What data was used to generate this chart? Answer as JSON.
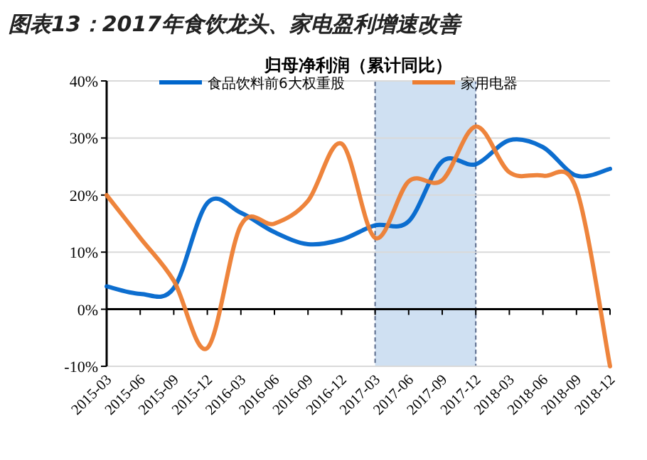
{
  "chart_data": {
    "type": "line",
    "title": "图表13：2017年食饮龙头、家电盈利增速改善",
    "subtitle": "归母净利润（累计同比）",
    "categories": [
      "2015-03",
      "2015-06",
      "2015-09",
      "2015-12",
      "2016-03",
      "2016-06",
      "2016-09",
      "2016-12",
      "2017-03",
      "2017-06",
      "2017-09",
      "2017-12",
      "2018-03",
      "2018-06",
      "2018-09",
      "2018-12"
    ],
    "series": [
      {
        "name": "食品饮料前6大权重股",
        "color": "#0066cc",
        "values": [
          4,
          2.7,
          3.7,
          18.6,
          16.9,
          13.5,
          11.4,
          12.2,
          14.7,
          15.4,
          25.9,
          25.4,
          29.6,
          28.4,
          23.4,
          24.6
        ]
      },
      {
        "name": "家用电器",
        "color": "#ed7d31",
        "values": [
          20,
          12.5,
          5,
          -6.8,
          14.7,
          15,
          19,
          29,
          12.5,
          22.4,
          22.6,
          32,
          24,
          23.4,
          21,
          -10
        ]
      }
    ],
    "ylim": [
      -10,
      40
    ],
    "yticks": [
      {
        "value": -10,
        "label": "-10%"
      },
      {
        "value": 0,
        "label": "0%"
      },
      {
        "value": 10,
        "label": "10%"
      },
      {
        "value": 20,
        "label": "20%"
      },
      {
        "value": 30,
        "label": "30%"
      },
      {
        "value": 40,
        "label": "40%"
      }
    ],
    "bands": [
      {
        "axis": "x",
        "from": "2017-03",
        "to": "2017-12",
        "color": "#cfe0f2"
      }
    ],
    "grid": "y",
    "legend": "top",
    "marker": "none",
    "line_style": "solid"
  }
}
